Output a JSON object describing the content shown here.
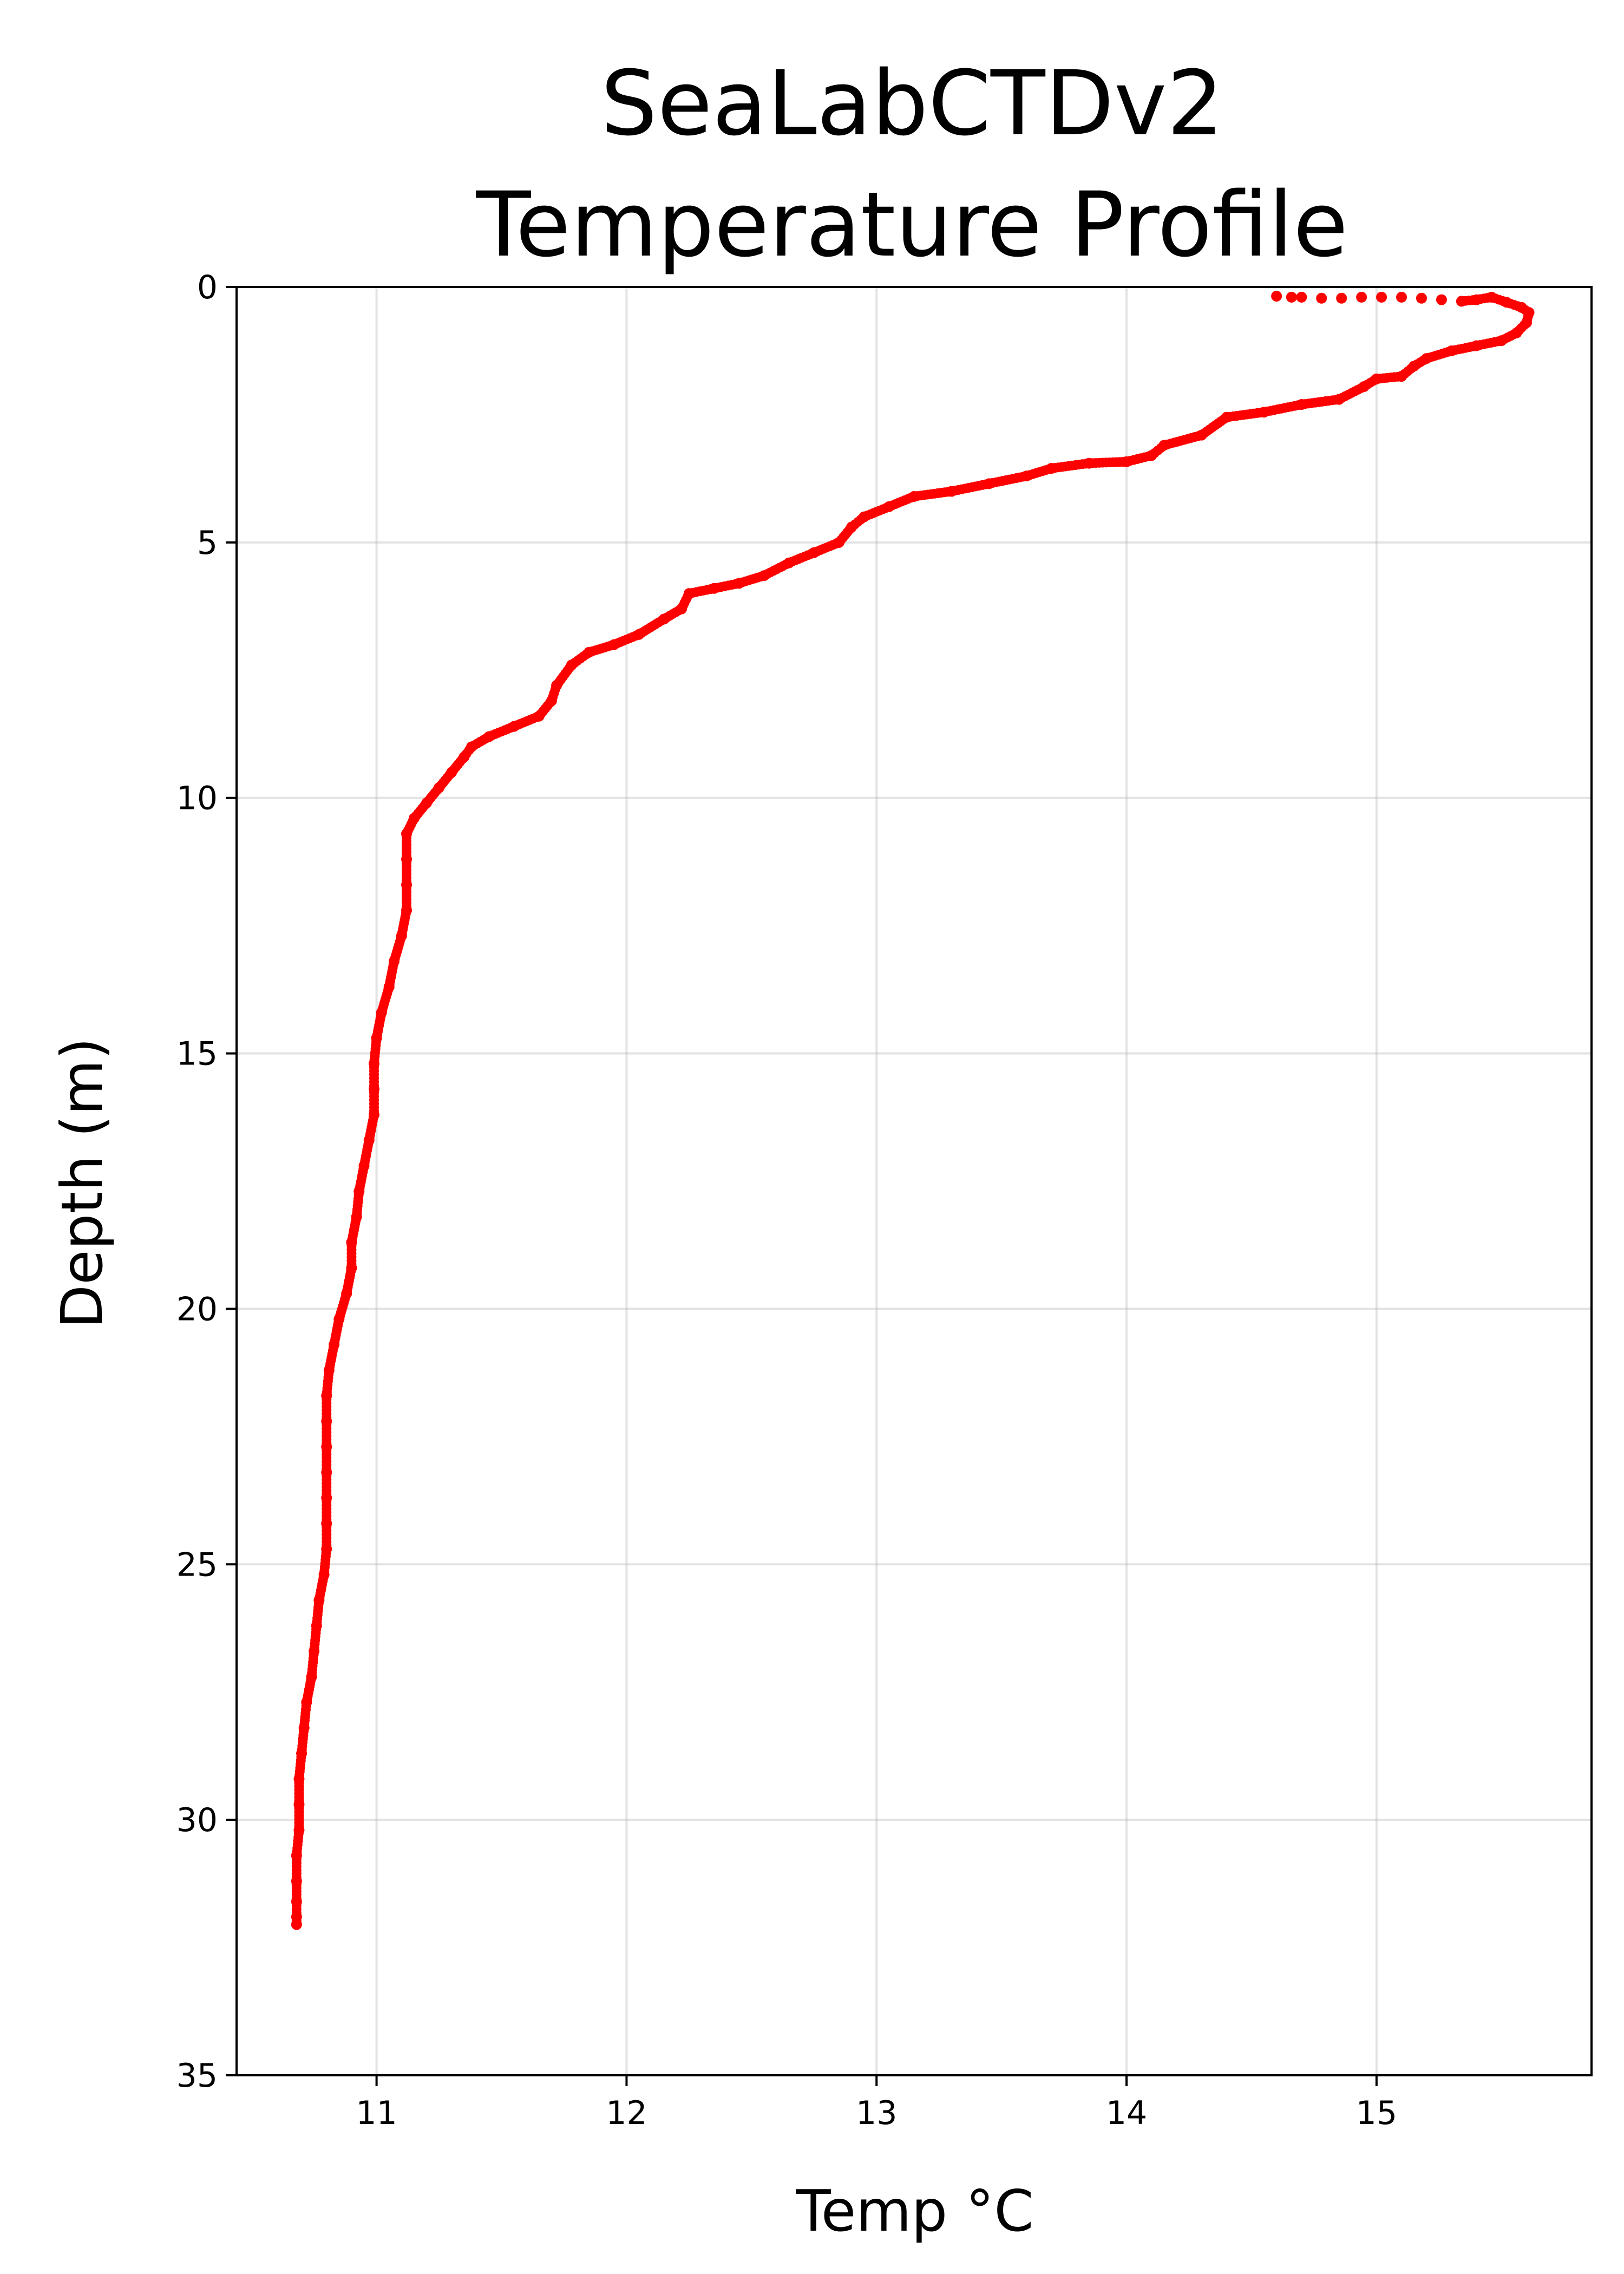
{
  "chart_data": {
    "type": "scatter",
    "title_lines": [
      "SeaLabCTDv2",
      "Temperature Profile"
    ],
    "xlabel": "Temp °C",
    "ylabel": "Depth (m)",
    "xlim": [
      10.44,
      15.86
    ],
    "ylim": [
      35,
      0
    ],
    "y_inverted": true,
    "grid": true,
    "marker_color": "#ff0000",
    "x_ticks": [
      11,
      12,
      13,
      14,
      15
    ],
    "x_tick_labels": [
      "11",
      "12",
      "13",
      "14",
      "15"
    ],
    "y_ticks": [
      0,
      5,
      10,
      15,
      20,
      25,
      30,
      35
    ],
    "y_tick_labels": [
      "0",
      "5",
      "10",
      "15",
      "20",
      "25",
      "30",
      "35"
    ],
    "series": [
      {
        "points": [
          [
            14.6,
            0.18
          ],
          [
            14.66,
            0.2
          ],
          [
            14.7,
            0.2
          ],
          [
            14.78,
            0.22
          ],
          [
            14.86,
            0.22
          ],
          [
            14.94,
            0.2
          ],
          [
            15.02,
            0.2
          ],
          [
            15.1,
            0.2
          ],
          [
            15.18,
            0.22
          ],
          [
            15.26,
            0.25
          ],
          [
            15.34,
            0.28
          ],
          [
            15.4,
            0.25
          ],
          [
            15.46,
            0.2
          ],
          [
            15.52,
            0.3
          ],
          [
            15.58,
            0.4
          ],
          [
            15.61,
            0.5
          ],
          [
            15.6,
            0.7
          ],
          [
            15.56,
            0.9
          ],
          [
            15.5,
            1.05
          ],
          [
            15.4,
            1.15
          ],
          [
            15.3,
            1.25
          ],
          [
            15.2,
            1.4
          ],
          [
            15.15,
            1.55
          ],
          [
            15.1,
            1.75
          ],
          [
            15.0,
            1.8
          ],
          [
            14.95,
            1.95
          ],
          [
            14.85,
            2.2
          ],
          [
            14.7,
            2.3
          ],
          [
            14.55,
            2.45
          ],
          [
            14.4,
            2.55
          ],
          [
            14.3,
            2.9
          ],
          [
            14.15,
            3.1
          ],
          [
            14.1,
            3.3
          ],
          [
            14.0,
            3.42
          ],
          [
            13.85,
            3.45
          ],
          [
            13.7,
            3.55
          ],
          [
            13.6,
            3.7
          ],
          [
            13.45,
            3.85
          ],
          [
            13.3,
            4.0
          ],
          [
            13.15,
            4.1
          ],
          [
            13.05,
            4.3
          ],
          [
            12.95,
            4.5
          ],
          [
            12.9,
            4.7
          ],
          [
            12.85,
            5.0
          ],
          [
            12.75,
            5.2
          ],
          [
            12.65,
            5.4
          ],
          [
            12.55,
            5.65
          ],
          [
            12.45,
            5.8
          ],
          [
            12.35,
            5.9
          ],
          [
            12.25,
            6.0
          ],
          [
            12.22,
            6.3
          ],
          [
            12.15,
            6.5
          ],
          [
            12.05,
            6.8
          ],
          [
            11.95,
            7.0
          ],
          [
            11.85,
            7.15
          ],
          [
            11.78,
            7.4
          ],
          [
            11.72,
            7.8
          ],
          [
            11.7,
            8.1
          ],
          [
            11.65,
            8.4
          ],
          [
            11.55,
            8.6
          ],
          [
            11.45,
            8.8
          ],
          [
            11.38,
            9.0
          ],
          [
            11.35,
            9.2
          ],
          [
            11.3,
            9.5
          ],
          [
            11.25,
            9.8
          ],
          [
            11.2,
            10.1
          ],
          [
            11.15,
            10.4
          ],
          [
            11.12,
            10.7
          ],
          [
            11.12,
            11.2
          ],
          [
            11.12,
            11.7
          ],
          [
            11.12,
            12.2
          ],
          [
            11.1,
            12.7
          ],
          [
            11.07,
            13.2
          ],
          [
            11.05,
            13.7
          ],
          [
            11.02,
            14.2
          ],
          [
            11.0,
            14.7
          ],
          [
            10.99,
            15.2
          ],
          [
            10.99,
            15.7
          ],
          [
            10.99,
            16.2
          ],
          [
            10.97,
            16.7
          ],
          [
            10.95,
            17.2
          ],
          [
            10.93,
            17.7
          ],
          [
            10.92,
            18.2
          ],
          [
            10.9,
            18.7
          ],
          [
            10.9,
            19.2
          ],
          [
            10.88,
            19.7
          ],
          [
            10.85,
            20.2
          ],
          [
            10.83,
            20.7
          ],
          [
            10.81,
            21.2
          ],
          [
            10.8,
            21.7
          ],
          [
            10.8,
            22.2
          ],
          [
            10.8,
            22.7
          ],
          [
            10.8,
            23.2
          ],
          [
            10.8,
            23.7
          ],
          [
            10.8,
            24.2
          ],
          [
            10.8,
            24.7
          ],
          [
            10.79,
            25.2
          ],
          [
            10.77,
            25.7
          ],
          [
            10.76,
            26.2
          ],
          [
            10.75,
            26.7
          ],
          [
            10.74,
            27.2
          ],
          [
            10.72,
            27.7
          ],
          [
            10.71,
            28.2
          ],
          [
            10.7,
            28.7
          ],
          [
            10.69,
            29.2
          ],
          [
            10.69,
            29.7
          ],
          [
            10.69,
            30.2
          ],
          [
            10.68,
            30.7
          ],
          [
            10.68,
            31.2
          ],
          [
            10.68,
            31.6
          ],
          [
            10.68,
            31.9
          ],
          [
            10.68,
            32.05
          ]
        ]
      }
    ]
  }
}
